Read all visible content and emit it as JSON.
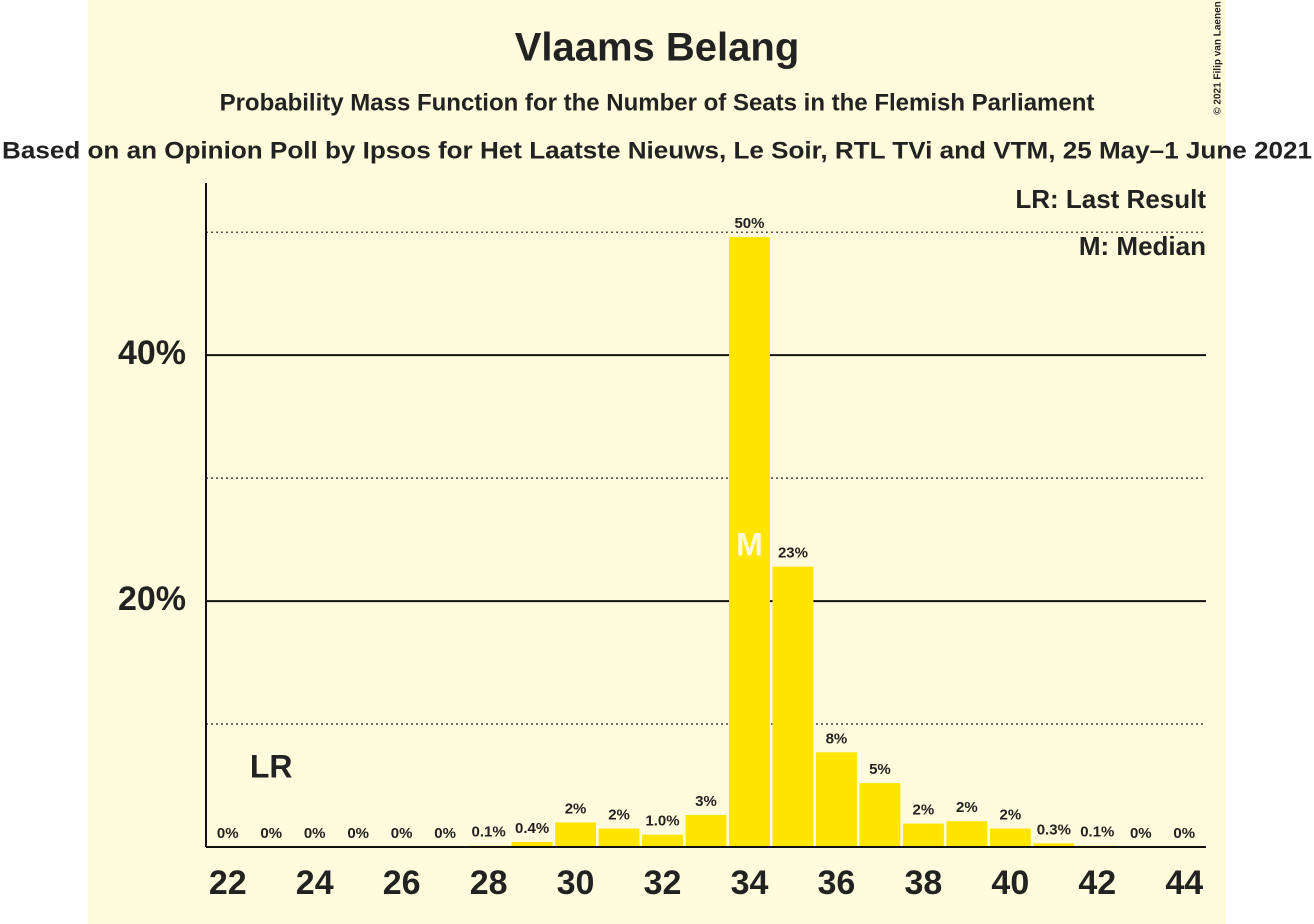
{
  "chart_data": {
    "type": "bar",
    "title": "Vlaams Belang",
    "subtitle": "Probability Mass Function for the Number of Seats in the Flemish Parliament",
    "source": "Based on an Opinion Poll by Ipsos for Het Laatste Nieuws, Le Soir, RTL TVi and VTM, 25 May–1 June 2021",
    "x": [
      22,
      23,
      24,
      25,
      26,
      27,
      28,
      29,
      30,
      31,
      32,
      33,
      34,
      35,
      36,
      37,
      38,
      39,
      40,
      41,
      42,
      43,
      44
    ],
    "values": [
      0,
      0,
      0,
      0,
      0,
      0,
      0.1,
      0.4,
      2.0,
      1.5,
      1.0,
      2.6,
      49.6,
      22.8,
      7.7,
      5.2,
      1.9,
      2.1,
      1.5,
      0.3,
      0.1,
      0,
      0
    ],
    "value_labels": [
      "0%",
      "0%",
      "0%",
      "0%",
      "0%",
      "0%",
      "0.1%",
      "0.4%",
      "2%",
      "2%",
      "1.0%",
      "3%",
      "50%",
      "23%",
      "8%",
      "5%",
      "2%",
      "2%",
      "2%",
      "0.3%",
      "0.1%",
      "0%",
      "0%"
    ],
    "color": "#ffe500",
    "xlim": [
      21.5,
      44.5
    ],
    "xticks": [
      22,
      24,
      26,
      28,
      30,
      32,
      34,
      36,
      38,
      40,
      42,
      44
    ],
    "ylim": [
      0,
      54
    ],
    "yticks": [
      {
        "value": 20,
        "label": "20%"
      },
      {
        "value": 40,
        "label": "40%"
      }
    ],
    "minor_yticks": [
      10,
      30,
      50
    ],
    "last_result": {
      "x": 23,
      "label": "LR"
    },
    "median": {
      "x": 34,
      "label": "M"
    },
    "legend": [
      "LR: Last Result",
      "M: Median"
    ],
    "copyright": "© 2021 Filip van Laenen"
  }
}
